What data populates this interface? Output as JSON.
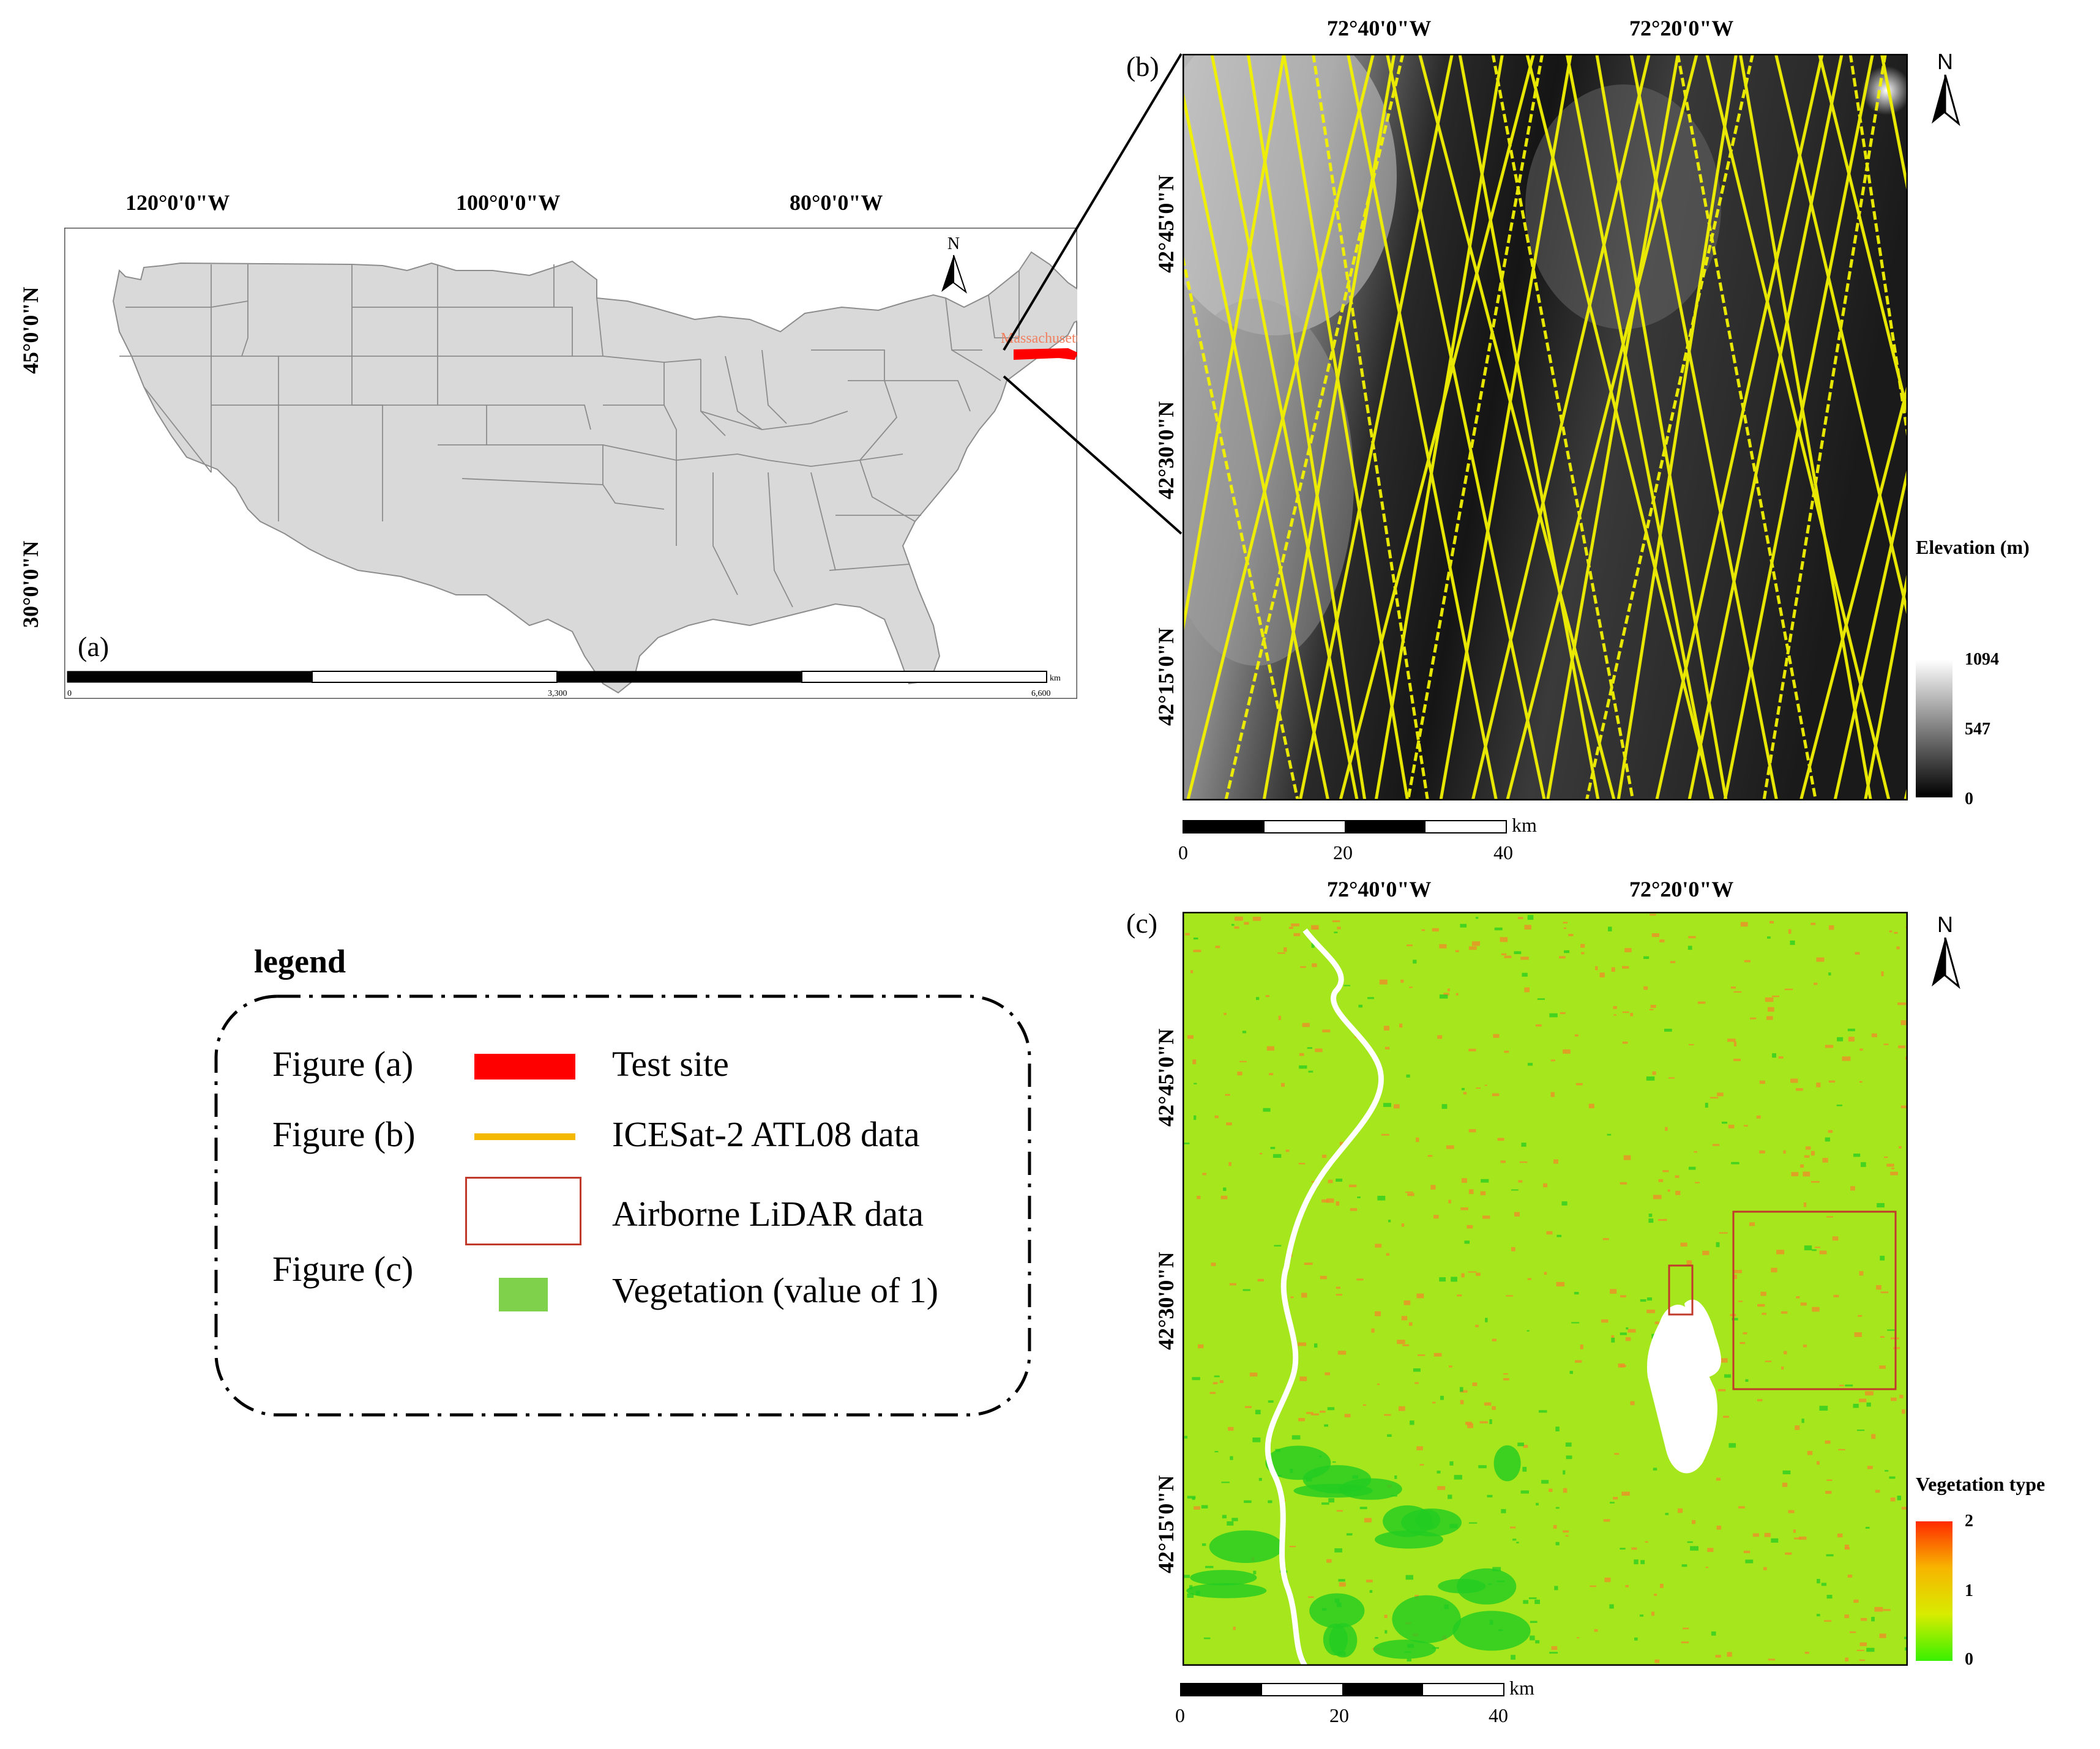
{
  "panel_a": {
    "label": "(a)",
    "lon_ticks": [
      "120°0'0\"W",
      "100°0'0\"W",
      "80°0'0\"W"
    ],
    "lat_ticks": [
      "45°0'0\"N",
      "30°0'0\"N"
    ],
    "state_label": "Massachusetts",
    "north": "N",
    "scale_ticks": [
      "0",
      "3,300",
      "6,600"
    ],
    "scale_unit": "km"
  },
  "panel_b": {
    "label": "(b)",
    "lon_ticks": [
      "72°40'0\"W",
      "72°20'0\"W"
    ],
    "lat_ticks": [
      "42°45'0\"N",
      "42°30'0\"N",
      "42°15'0\"N"
    ],
    "north": "N",
    "colorbar_title": "Elevation (m)",
    "colorbar_ticks": [
      "1094",
      "547",
      "0"
    ],
    "colorbar_range": [
      0,
      1094
    ],
    "scale_ticks": [
      "0",
      "20",
      "40"
    ],
    "scale_unit": "km"
  },
  "panel_c": {
    "label": "(c)",
    "lon_ticks": [
      "72°40'0\"W",
      "72°20'0\"W"
    ],
    "lat_ticks": [
      "42°45'0\"N",
      "42°30'0\"N",
      "42°15'0\"N"
    ],
    "north": "N",
    "colorbar_title": "Vegetation type",
    "colorbar_ticks": [
      "2",
      "1",
      "0"
    ],
    "colorbar_range": [
      0,
      2
    ],
    "scale_ticks": [
      "0",
      "20",
      "40"
    ],
    "scale_unit": "km"
  },
  "legend": {
    "title": "legend",
    "rows": [
      {
        "group": "Figure (a)",
        "text": "Test site",
        "swatch": "fill",
        "color": "#ff0000"
      },
      {
        "group": "Figure (b)",
        "text": "ICESat-2 ATL08 data",
        "swatch": "line",
        "color": "#f5b800"
      },
      {
        "group": "",
        "text": "Airborne LiDAR data",
        "swatch": "box",
        "color": "#c0392b"
      },
      {
        "group": "Figure (c)",
        "text": "Vegetation (value of 1)",
        "swatch": "fill",
        "color": "#7fd04a"
      }
    ]
  },
  "colors": {
    "state_fill": "#d9d9d9",
    "state_border": "#8c8c8c",
    "test_site": "#ff0000",
    "track": "#f2f200",
    "veg_base": "#a6e61c",
    "veg_green": "#22cc22",
    "veg_orange": "#f08a2a"
  }
}
